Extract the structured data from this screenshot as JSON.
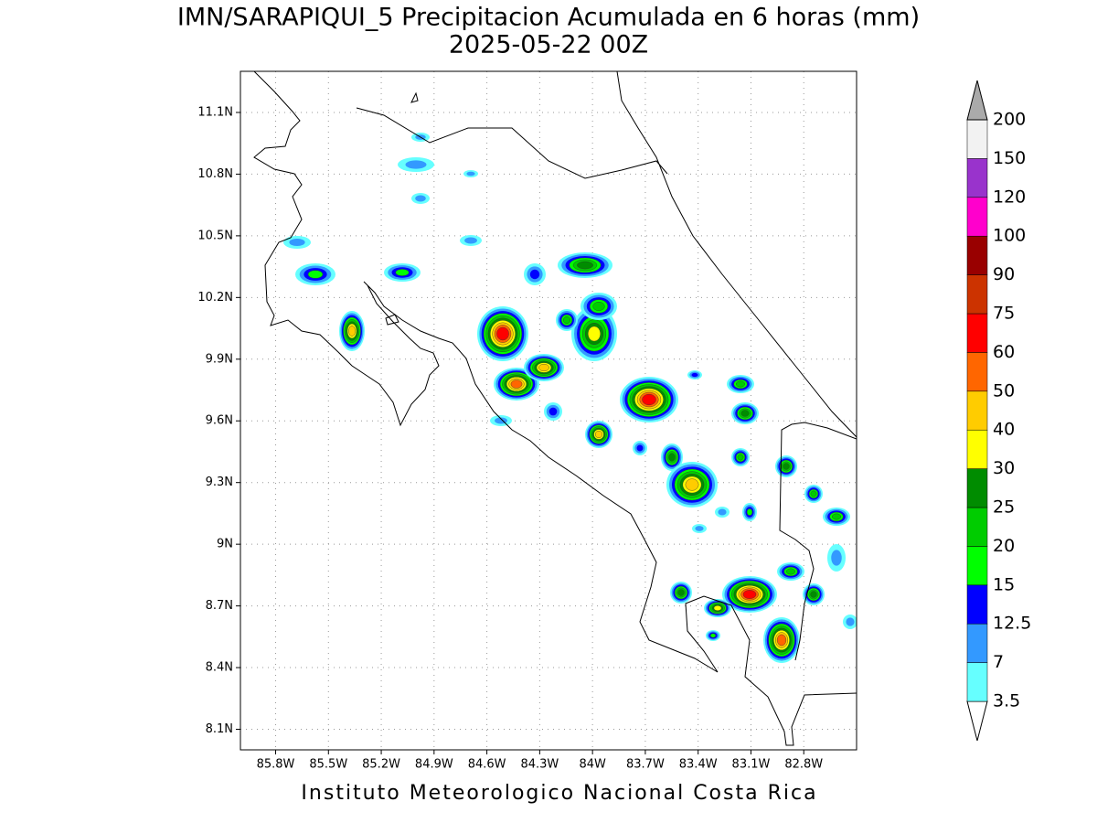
{
  "title": "IMN/SARAPIQUI_5 Precipitacion Acumulada en 6 horas (mm)",
  "subtitle": "2025-05-22 00Z",
  "footer": "Instituto Meteorologico Nacional Costa Rica",
  "map": {
    "xlim": [
      -86.0,
      -82.5
    ],
    "ylim": [
      8.0,
      11.3
    ],
    "grid": true,
    "xticks": [
      {
        "value": -85.8,
        "label": "85.8W"
      },
      {
        "value": -85.5,
        "label": "85.5W"
      },
      {
        "value": -85.2,
        "label": "85.2W"
      },
      {
        "value": -84.9,
        "label": "84.9W"
      },
      {
        "value": -84.6,
        "label": "84.6W"
      },
      {
        "value": -84.3,
        "label": "84.3W"
      },
      {
        "value": -84.0,
        "label": "84W"
      },
      {
        "value": -83.7,
        "label": "83.7W"
      },
      {
        "value": -83.4,
        "label": "83.4W"
      },
      {
        "value": -83.1,
        "label": "83.1W"
      },
      {
        "value": -82.8,
        "label": "82.8W"
      }
    ],
    "yticks": [
      {
        "value": 8.1,
        "label": "8.1N"
      },
      {
        "value": 8.4,
        "label": "8.4N"
      },
      {
        "value": 8.7,
        "label": "8.7N"
      },
      {
        "value": 9.0,
        "label": "9N"
      },
      {
        "value": 9.3,
        "label": "9.3N"
      },
      {
        "value": 9.6,
        "label": "9.6N"
      },
      {
        "value": 9.9,
        "label": "9.9N"
      },
      {
        "value": 10.2,
        "label": "10.2N"
      },
      {
        "value": 10.5,
        "label": "10.5N"
      },
      {
        "value": 10.8,
        "label": "10.8N"
      },
      {
        "value": 11.1,
        "label": "11.1N"
      }
    ]
  },
  "colorbar": {
    "levels": [
      3.5,
      7,
      12.5,
      15,
      20,
      25,
      30,
      40,
      50,
      60,
      75,
      90,
      100,
      120,
      150,
      200
    ],
    "colors": [
      "#ffffff",
      "#66ffff",
      "#3399ff",
      "#0000ff",
      "#00ff00",
      "#00cc00",
      "#008c00",
      "#ffff00",
      "#ffcc00",
      "#ff6600",
      "#ff0000",
      "#cc3300",
      "#990000",
      "#ff00cc",
      "#9933cc",
      "#f2f2f2",
      "#aaaaaa"
    ]
  }
}
